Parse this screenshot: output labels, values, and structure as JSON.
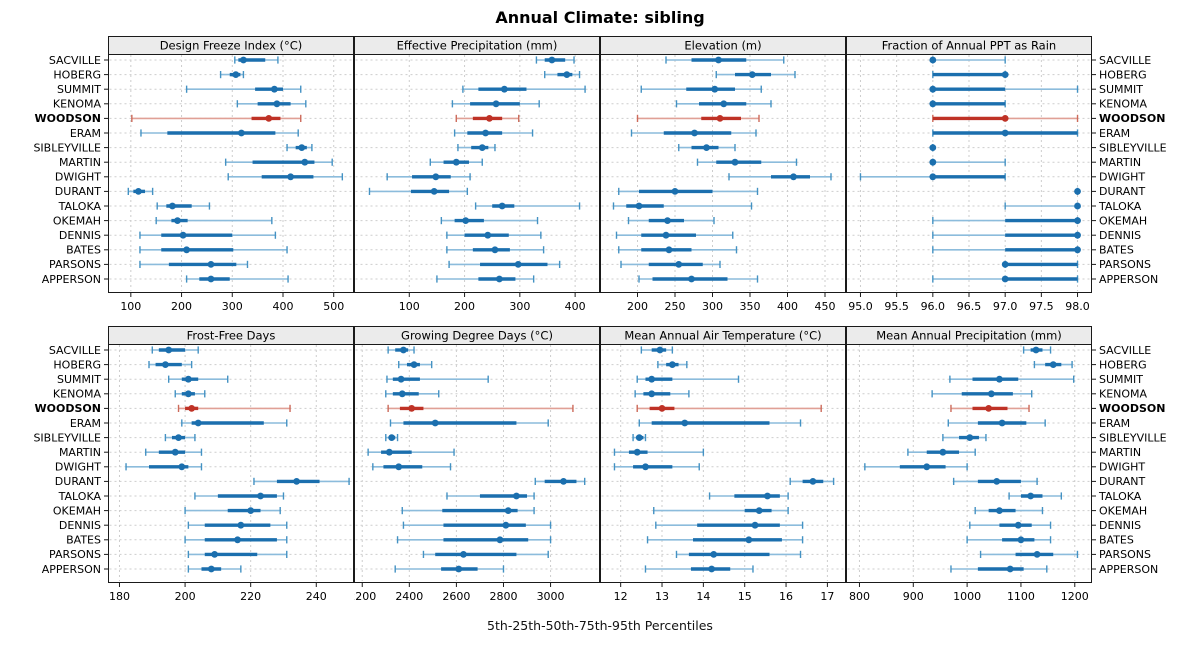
{
  "title": "Annual Climate: sibling",
  "xlabel": "5th-25th-50th-75th-95th Percentiles",
  "percentile_levels": [
    5,
    25,
    50,
    75,
    95
  ],
  "highlight_station": "WOODSON",
  "stations": [
    "SACVILLE",
    "HOBERG",
    "SUMMIT",
    "KENOMA",
    "WOODSON",
    "ERAM",
    "SIBLEYVILLE",
    "MARTIN",
    "DWIGHT",
    "DURANT",
    "TALOKA",
    "OKEMAH",
    "DENNIS",
    "BATES",
    "PARSONS",
    "APPERSON"
  ],
  "colors": {
    "normal_main": "#1b6fae",
    "normal_light": "#8cbcdc",
    "normal_cap": "#4492c3",
    "highlight_main": "#bf3226",
    "highlight_light": "#e0a096",
    "highlight_cap": "#cc6a5a",
    "strip_bg": "#ebebeb",
    "border": "#1a1a1a",
    "grid": "#cdcdcd",
    "text": "#000000"
  },
  "chart_data": [
    {
      "type": "interval",
      "title": "Design Freeze Index (°C)",
      "xlim": [
        55,
        540
      ],
      "ticks": [
        100,
        200,
        300,
        400,
        500
      ],
      "tick_labels": [
        "100",
        "200",
        "300",
        "400",
        "500"
      ],
      "values": [
        [
          305,
          312,
          322,
          365,
          390
        ],
        [
          277,
          295,
          307,
          316,
          322
        ],
        [
          210,
          345,
          383,
          400,
          435
        ],
        [
          310,
          350,
          388,
          415,
          445
        ],
        [
          102,
          338,
          372,
          395,
          435
        ],
        [
          120,
          172,
          318,
          385,
          430
        ],
        [
          408,
          425,
          437,
          447,
          457
        ],
        [
          287,
          340,
          443,
          462,
          497
        ],
        [
          292,
          358,
          415,
          460,
          517
        ],
        [
          95,
          105,
          115,
          128,
          143
        ],
        [
          152,
          170,
          182,
          220,
          255
        ],
        [
          150,
          180,
          192,
          212,
          378
        ],
        [
          118,
          160,
          203,
          300,
          385
        ],
        [
          118,
          160,
          210,
          302,
          408
        ],
        [
          118,
          175,
          258,
          308,
          330
        ],
        [
          210,
          235,
          258,
          295,
          410
        ]
      ]
    },
    {
      "type": "interval",
      "title": "Effective Precipitation (mm)",
      "xlim": [
        0,
        445
      ],
      "ticks": [
        100,
        200,
        300,
        400
      ],
      "tick_labels": [
        "100",
        "200",
        "300",
        "400"
      ],
      "values": [
        [
          330,
          345,
          358,
          382,
          398
        ],
        [
          345,
          368,
          385,
          395,
          408
        ],
        [
          197,
          225,
          272,
          312,
          418
        ],
        [
          178,
          210,
          257,
          300,
          335
        ],
        [
          185,
          215,
          245,
          268,
          298
        ],
        [
          182,
          205,
          238,
          268,
          323
        ],
        [
          188,
          212,
          232,
          243,
          255
        ],
        [
          138,
          162,
          185,
          208,
          232
        ],
        [
          60,
          105,
          148,
          175,
          210
        ],
        [
          28,
          103,
          145,
          172,
          205
        ],
        [
          220,
          250,
          268,
          290,
          408
        ],
        [
          158,
          182,
          202,
          235,
          332
        ],
        [
          168,
          200,
          242,
          280,
          338
        ],
        [
          168,
          215,
          255,
          282,
          343
        ],
        [
          172,
          228,
          297,
          350,
          372
        ],
        [
          150,
          225,
          263,
          292,
          325
        ]
      ]
    },
    {
      "type": "interval",
      "title": "Elevation (m)",
      "xlim": [
        150,
        478
      ],
      "ticks": [
        200,
        250,
        300,
        350,
        400,
        450
      ],
      "tick_labels": [
        "200",
        "250",
        "300",
        "350",
        "400",
        "450"
      ],
      "values": [
        [
          238,
          272,
          308,
          345,
          395
        ],
        [
          305,
          330,
          353,
          378,
          410
        ],
        [
          205,
          265,
          303,
          330,
          365
        ],
        [
          252,
          282,
          315,
          345,
          378
        ],
        [
          200,
          285,
          310,
          338,
          362
        ],
        [
          192,
          235,
          276,
          325,
          358
        ],
        [
          255,
          272,
          292,
          308,
          330
        ],
        [
          280,
          305,
          330,
          365,
          412
        ],
        [
          322,
          378,
          408,
          430,
          458
        ],
        [
          175,
          202,
          250,
          300,
          360
        ],
        [
          168,
          185,
          202,
          235,
          352
        ],
        [
          188,
          215,
          240,
          262,
          302
        ],
        [
          172,
          205,
          238,
          278,
          327
        ],
        [
          175,
          205,
          242,
          272,
          332
        ],
        [
          178,
          215,
          255,
          287,
          310
        ],
        [
          202,
          220,
          272,
          320,
          360
        ]
      ]
    },
    {
      "type": "interval",
      "title": "Fraction of Annual PPT as Rain",
      "xlim": [
        94.8,
        98.2
      ],
      "ticks": [
        95.0,
        95.5,
        96.0,
        96.5,
        97.0,
        97.5,
        98.0
      ],
      "tick_labels": [
        "95.0",
        "95.5",
        "96.0",
        "96.5",
        "97.0",
        "97.5",
        "98.0"
      ],
      "values": [
        [
          96,
          96,
          96,
          96,
          97
        ],
        [
          96,
          96,
          97,
          97,
          97
        ],
        [
          96,
          96,
          96,
          97,
          98
        ],
        [
          96,
          96,
          96,
          97,
          97
        ],
        [
          96,
          96,
          97,
          97,
          98
        ],
        [
          96,
          96,
          97,
          98,
          98
        ],
        [
          96,
          96,
          96,
          96,
          96
        ],
        [
          96,
          96,
          96,
          96,
          97
        ],
        [
          95,
          96,
          96,
          97,
          97
        ],
        [
          98,
          98,
          98,
          98,
          98
        ],
        [
          97,
          98,
          98,
          98,
          98
        ],
        [
          96,
          97,
          98,
          98,
          98
        ],
        [
          96,
          97,
          98,
          98,
          98
        ],
        [
          96,
          97,
          98,
          98,
          98
        ],
        [
          97,
          97,
          97,
          98,
          98
        ],
        [
          96,
          97,
          97,
          98,
          98
        ]
      ]
    },
    {
      "type": "interval",
      "title": "Frost-Free Days",
      "xlim": [
        176.5,
        251.5
      ],
      "ticks": [
        180,
        200,
        220,
        240
      ],
      "tick_labels": [
        "180",
        "200",
        "220",
        "240"
      ],
      "values": [
        [
          190,
          192,
          195,
          200,
          204
        ],
        [
          189,
          191,
          194,
          199,
          202
        ],
        [
          195,
          199,
          201,
          204,
          213
        ],
        [
          197,
          199,
          201,
          203,
          206
        ],
        [
          198,
          200,
          202,
          204,
          232
        ],
        [
          199,
          202,
          204,
          224,
          231
        ],
        [
          194,
          196,
          198,
          200,
          203
        ],
        [
          188,
          192,
          197,
          200,
          205
        ],
        [
          182,
          189,
          199,
          201,
          205
        ],
        [
          221,
          228,
          234,
          241,
          250
        ],
        [
          203,
          210,
          223,
          228,
          230
        ],
        [
          200,
          213,
          220,
          223,
          229
        ],
        [
          201,
          206,
          217,
          226,
          231
        ],
        [
          200,
          206,
          216,
          228,
          231
        ],
        [
          201,
          206,
          209,
          222,
          231
        ],
        [
          201,
          205,
          208,
          211,
          217
        ]
      ]
    },
    {
      "type": "interval",
      "title": "Growing Degree Days (°C)",
      "xlim": [
        2165,
        3210
      ],
      "ticks": [
        2200,
        2400,
        2600,
        2800,
        3000
      ],
      "tick_labels": [
        "2200",
        "2400",
        "2600",
        "2800",
        "3000"
      ],
      "values": [
        [
          2310,
          2340,
          2375,
          2395,
          2420
        ],
        [
          2355,
          2390,
          2420,
          2445,
          2495
        ],
        [
          2305,
          2330,
          2365,
          2445,
          2735
        ],
        [
          2300,
          2330,
          2370,
          2440,
          2525
        ],
        [
          2310,
          2360,
          2410,
          2460,
          3095
        ],
        [
          2320,
          2375,
          2510,
          2855,
          2990
        ],
        [
          2300,
          2315,
          2325,
          2340,
          2350
        ],
        [
          2225,
          2280,
          2315,
          2410,
          2590
        ],
        [
          2245,
          2290,
          2355,
          2455,
          2575
        ],
        [
          2935,
          2975,
          3055,
          3110,
          3145
        ],
        [
          2560,
          2700,
          2855,
          2900,
          2930
        ],
        [
          2370,
          2540,
          2820,
          2860,
          2930
        ],
        [
          2375,
          2545,
          2810,
          2895,
          3000
        ],
        [
          2350,
          2545,
          2785,
          2905,
          3000
        ],
        [
          2460,
          2510,
          2630,
          2855,
          2990
        ],
        [
          2340,
          2535,
          2610,
          2690,
          2800
        ]
      ]
    },
    {
      "type": "interval",
      "title": "Mean Annual Air Temperature (°C)",
      "xlim": [
        11.5,
        17.45
      ],
      "ticks": [
        12,
        13,
        14,
        15,
        16,
        17
      ],
      "tick_labels": [
        "12",
        "13",
        "14",
        "15",
        "16",
        "17"
      ],
      "values": [
        [
          12.5,
          12.75,
          12.95,
          13.1,
          13.25
        ],
        [
          12.9,
          13.1,
          13.25,
          13.4,
          13.6
        ],
        [
          12.4,
          12.6,
          12.75,
          13.25,
          14.85
        ],
        [
          12.35,
          12.55,
          12.75,
          13.2,
          13.65
        ],
        [
          12.4,
          12.7,
          13.0,
          13.3,
          16.85
        ],
        [
          12.45,
          12.75,
          13.55,
          15.6,
          16.35
        ],
        [
          12.3,
          12.4,
          12.45,
          12.55,
          12.6
        ],
        [
          11.85,
          12.2,
          12.4,
          12.65,
          14.0
        ],
        [
          11.85,
          12.3,
          12.6,
          13.25,
          13.9
        ],
        [
          16.1,
          16.4,
          16.65,
          16.9,
          17.15
        ],
        [
          14.15,
          14.75,
          15.55,
          15.85,
          16.05
        ],
        [
          12.8,
          15.0,
          15.35,
          15.65,
          16.05
        ],
        [
          12.85,
          13.85,
          15.25,
          15.85,
          16.4
        ],
        [
          12.65,
          13.75,
          15.1,
          15.9,
          16.4
        ],
        [
          13.35,
          13.65,
          14.25,
          15.6,
          16.35
        ],
        [
          12.6,
          13.7,
          14.2,
          14.65,
          15.2
        ]
      ]
    },
    {
      "type": "interval",
      "title": "Mean Annual Precipitation (mm)",
      "xlim": [
        775,
        1232
      ],
      "ticks": [
        800,
        900,
        1000,
        1100,
        1200
      ],
      "tick_labels": [
        "800",
        "900",
        "1000",
        "1100",
        "1200"
      ],
      "values": [
        [
          1105,
          1118,
          1128,
          1140,
          1155
        ],
        [
          1125,
          1145,
          1160,
          1175,
          1195
        ],
        [
          968,
          1010,
          1060,
          1095,
          1198
        ],
        [
          935,
          990,
          1045,
          1085,
          1120
        ],
        [
          970,
          1010,
          1040,
          1075,
          1115
        ],
        [
          965,
          1020,
          1065,
          1110,
          1145
        ],
        [
          955,
          985,
          1005,
          1022,
          1035
        ],
        [
          890,
          925,
          955,
          985,
          1015
        ],
        [
          810,
          875,
          925,
          960,
          1000
        ],
        [
          975,
          1020,
          1055,
          1100,
          1130
        ],
        [
          1078,
          1100,
          1118,
          1140,
          1175
        ],
        [
          1015,
          1040,
          1060,
          1090,
          1140
        ],
        [
          1005,
          1060,
          1095,
          1120,
          1155
        ],
        [
          1000,
          1065,
          1100,
          1125,
          1155
        ],
        [
          1025,
          1090,
          1130,
          1160,
          1205
        ],
        [
          970,
          1020,
          1080,
          1105,
          1148
        ]
      ]
    }
  ]
}
